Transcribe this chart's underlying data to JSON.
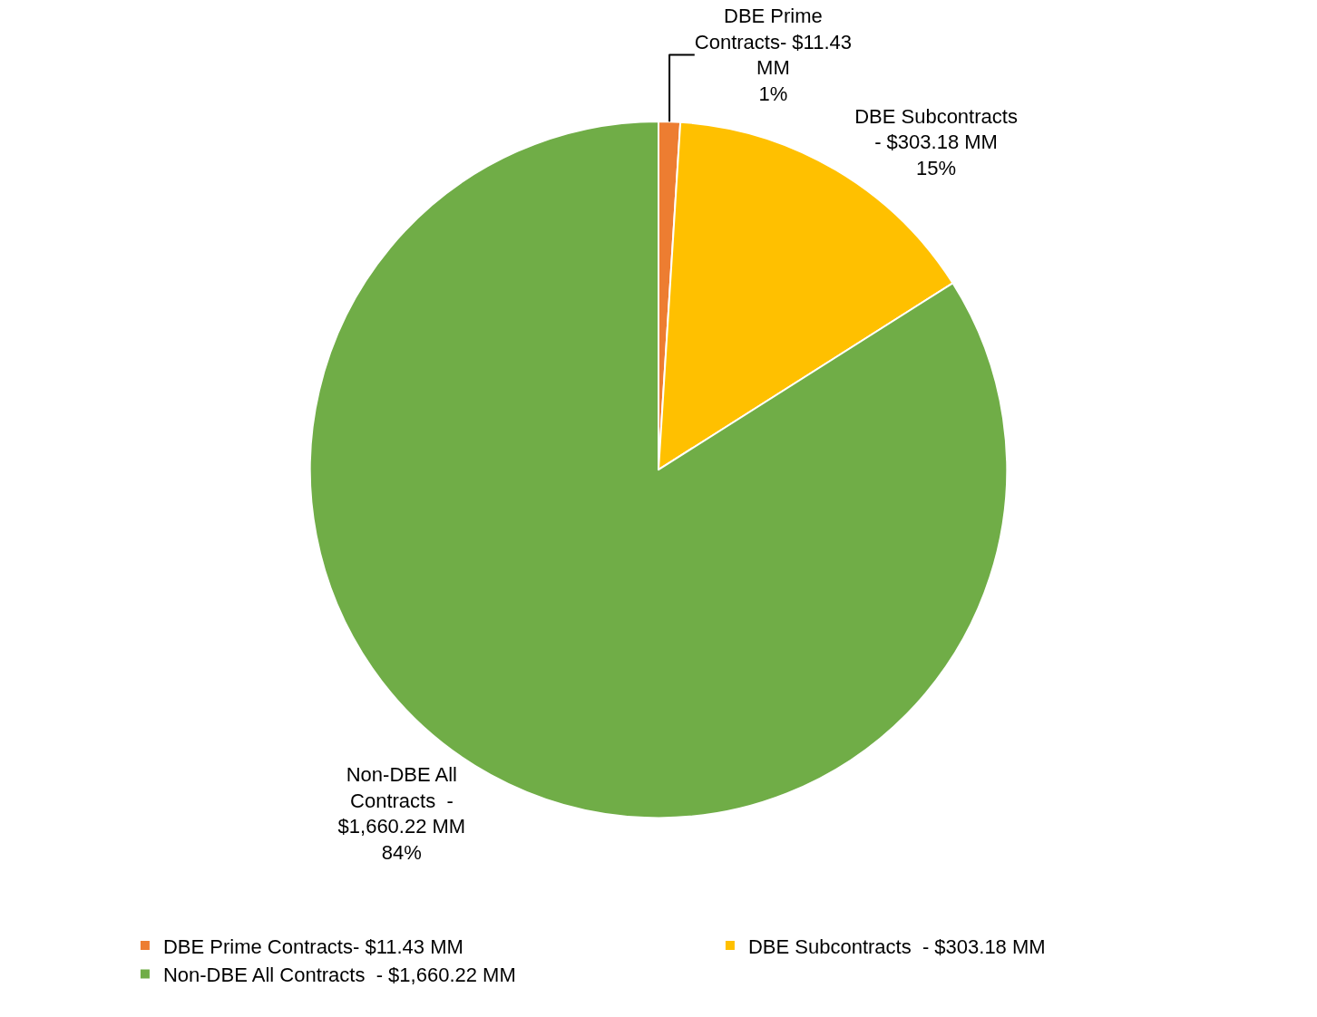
{
  "chart_data": {
    "type": "pie",
    "categories": [
      "DBE Prime Contracts- $11.43 MM",
      "DBE Subcontracts  - $303.18 MM",
      "Non-DBE All Contracts  - $1,660.22 MM"
    ],
    "values": [
      1,
      15,
      84
    ],
    "value_labels": [
      "1%",
      "15%",
      "84%"
    ],
    "colors": [
      "#ed7d31",
      "#ffc000",
      "#70ad47"
    ],
    "legend": "bottom"
  }
}
